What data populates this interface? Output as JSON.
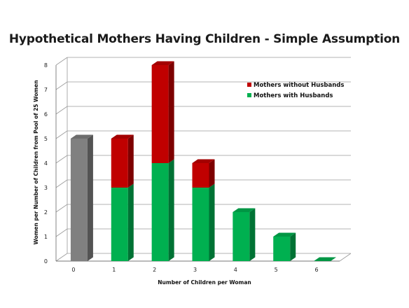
{
  "chart_data": {
    "type": "bar",
    "stacked": true,
    "title": "Hypothetical Mothers Having Children - Simple Assumption",
    "xlabel": "Number of Children per Woman",
    "ylabel": "Women per Number of Children from Pool of 25 Women",
    "categories": [
      "0",
      "1",
      "2",
      "3",
      "4",
      "5",
      "6"
    ],
    "ylim": [
      0,
      8
    ],
    "yticks": [
      "0",
      "1",
      "2",
      "3",
      "4",
      "5",
      "6",
      "7",
      "8"
    ],
    "grid": true,
    "legend_position": "top-right",
    "series": [
      {
        "name": "",
        "values": [
          5,
          0,
          0,
          0,
          0,
          0,
          0
        ],
        "color": "#808080"
      },
      {
        "name": "Mothers with Husbands",
        "values": [
          0,
          3,
          4,
          3,
          2,
          1,
          0
        ],
        "color": "#00b050"
      },
      {
        "name": "Mothers without Husbands",
        "values": [
          0,
          2,
          4,
          1,
          0,
          0,
          0
        ],
        "color": "#c00000"
      }
    ],
    "legend": [
      {
        "name": "Mothers without Husbands",
        "color": "#c00000"
      },
      {
        "name": "Mothers with Husbands",
        "color": "#00b050"
      }
    ]
  }
}
